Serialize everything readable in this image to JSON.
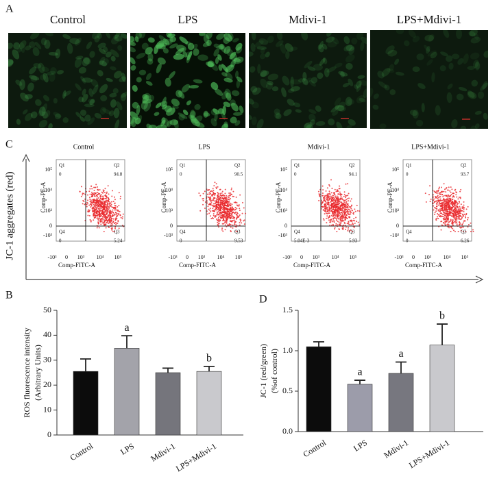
{
  "panel_a": {
    "label": "A",
    "titles": [
      "Control",
      "LPS",
      "Mdivi-1",
      "LPS+Mdivi-1"
    ]
  },
  "panel_c": {
    "label": "C",
    "y_label": "JC-1 aggregates (red)",
    "x_ticks": [
      "-10³",
      "0",
      "10³",
      "10⁴",
      "10⁵"
    ],
    "y_ticks": [
      "10⁵",
      "10⁴",
      "10³",
      "0",
      "-10³"
    ],
    "plots": [
      {
        "title": "Control",
        "x_label": "Comp-FITC-A",
        "y_label": "Comp-PE-A",
        "quadrants": [
          {
            "name": "Q1",
            "value": 0
          },
          {
            "name": "Q2",
            "value": 94.8
          },
          {
            "name": "Q3",
            "value": 5.24
          },
          {
            "name": "Q4",
            "value": 0
          }
        ]
      },
      {
        "title": "LPS",
        "x_label": "Comp-FITC-A",
        "y_label": "Comp-PE-A",
        "quadrants": [
          {
            "name": "Q1",
            "value": 0
          },
          {
            "name": "Q2",
            "value": 90.5
          },
          {
            "name": "Q3",
            "value": 9.53
          },
          {
            "name": "Q4",
            "value": 0
          }
        ]
      },
      {
        "title": "Mdivi-1",
        "x_label": "Comp-FITC-A",
        "y_label": "Comp-PE-A",
        "quadrants": [
          {
            "name": "Q1",
            "value": 0
          },
          {
            "name": "Q2",
            "value": 94.1
          },
          {
            "name": "Q3",
            "value": 5.93
          },
          {
            "name": "Q4",
            "value": "5.04E-3"
          }
        ]
      },
      {
        "title": "LPS+Mdivi-1",
        "x_label": "Comp-FITC-A",
        "y_label": "Comp-PE-A",
        "quadrants": [
          {
            "name": "Q1",
            "value": 0
          },
          {
            "name": "Q2",
            "value": 93.7
          },
          {
            "name": "Q3",
            "value": 6.26
          },
          {
            "name": "Q4",
            "value": 0
          }
        ]
      }
    ]
  },
  "chart_data": [
    {
      "type": "bar",
      "panel_label": "B",
      "y_label": [
        "ROS fluorescence intensity",
        "(Arbitrary Units)"
      ],
      "categories": [
        "Control",
        "LPS",
        "Mdivi-1",
        "LPS+Mdivi-1"
      ],
      "values": [
        25.5,
        34.8,
        25,
        25.5
      ],
      "errors": [
        5,
        5,
        1.8,
        2
      ],
      "colors": [
        "#0c0c0c",
        "#a3a3aa",
        "#75757c",
        "#c9c9cd"
      ],
      "annotations": [
        null,
        "a",
        null,
        "b"
      ],
      "ylim": [
        0,
        50
      ],
      "yticks": [
        0,
        10,
        20,
        30,
        40,
        50
      ]
    },
    {
      "type": "bar",
      "panel_label": "D",
      "y_label": [
        "JC-1 (red/green)",
        "(%of control)"
      ],
      "categories": [
        "Control",
        "LPS",
        "Mdivi-1",
        "LPS+Mdivi-1"
      ],
      "values": [
        1.05,
        0.585,
        0.72,
        1.07
      ],
      "errors": [
        0.06,
        0.05,
        0.14,
        0.26
      ],
      "colors": [
        "#0c0c0c",
        "#9c9caa",
        "#77777f",
        "#c9c9cd"
      ],
      "annotations": [
        null,
        "a",
        "a",
        "b"
      ],
      "ylim": [
        0,
        1.5
      ],
      "yticks": [
        {
          "value": 0,
          "label": "0.0"
        },
        0.5,
        {
          "value": 1,
          "label": "1.0"
        },
        1.5
      ]
    }
  ]
}
